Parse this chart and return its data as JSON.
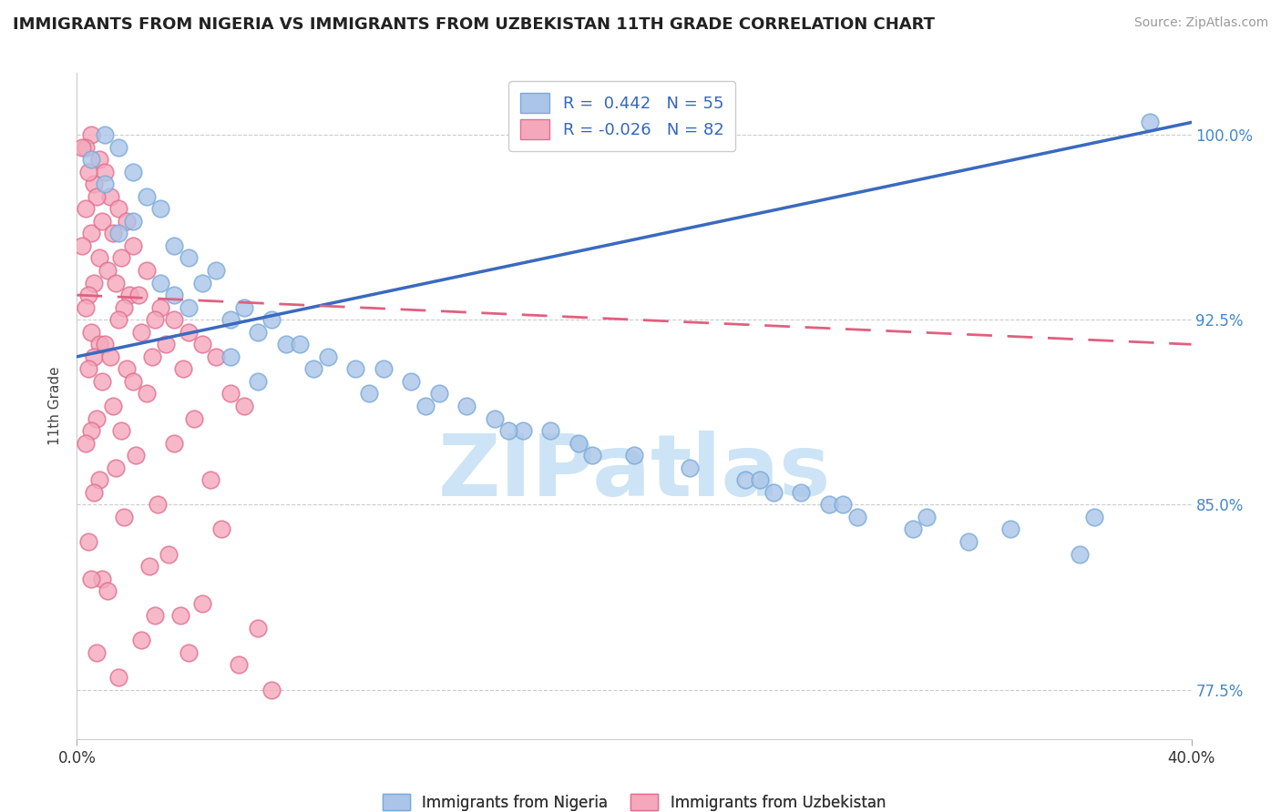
{
  "title": "IMMIGRANTS FROM NIGERIA VS IMMIGRANTS FROM UZBEKISTAN 11TH GRADE CORRELATION CHART",
  "source": "Source: ZipAtlas.com",
  "ylabel": "11th Grade",
  "y_ticks": [
    77.5,
    85.0,
    92.5,
    100.0
  ],
  "y_tick_labels": [
    "77.5%",
    "85.0%",
    "92.5%",
    "100.0%"
  ],
  "xlim": [
    0.0,
    40.0
  ],
  "ylim": [
    75.5,
    102.5
  ],
  "nigeria_color": "#aac5e8",
  "uzbekistan_color": "#f5a8bc",
  "nigeria_edge": "#7aaad8",
  "uzbekistan_edge": "#e07090",
  "trendline_nigeria_color": "#3a6abf",
  "trendline_uzbekistan_color": "#e06080",
  "legend_nigeria_label": "R =  0.442   N = 55",
  "legend_uzbekistan_label": "R = -0.026   N = 82",
  "legend_nigeria_face": "#aac5e8",
  "legend_uzbekistan_face": "#f5a8bc",
  "watermark": "ZIPatlas",
  "watermark_color": "#cce4f5",
  "trendline_nigeria_x0": 0.0,
  "trendline_nigeria_y0": 91.0,
  "trendline_nigeria_x1": 40.0,
  "trendline_nigeria_y1": 100.5,
  "trendline_uzbekistan_x0": 0.0,
  "trendline_uzbekistan_y0": 93.5,
  "trendline_uzbekistan_x1": 40.0,
  "trendline_uzbekistan_y1": 91.5,
  "nigeria_x": [
    1.0,
    1.5,
    0.5,
    2.0,
    1.0,
    2.5,
    3.0,
    2.0,
    1.5,
    3.5,
    4.0,
    5.0,
    4.5,
    3.5,
    6.0,
    5.5,
    7.0,
    6.5,
    7.5,
    8.0,
    9.0,
    10.0,
    11.0,
    12.0,
    13.0,
    14.0,
    15.0,
    16.0,
    17.0,
    18.0,
    20.0,
    22.0,
    24.0,
    25.0,
    26.0,
    27.0,
    28.0,
    30.0,
    32.0,
    36.0,
    38.5,
    3.0,
    4.0,
    5.5,
    6.5,
    8.5,
    10.5,
    12.5,
    15.5,
    18.5,
    24.5,
    27.5,
    30.5,
    33.5,
    36.5
  ],
  "nigeria_y": [
    100.0,
    99.5,
    99.0,
    98.5,
    98.0,
    97.5,
    97.0,
    96.5,
    96.0,
    95.5,
    95.0,
    94.5,
    94.0,
    93.5,
    93.0,
    92.5,
    92.5,
    92.0,
    91.5,
    91.5,
    91.0,
    90.5,
    90.5,
    90.0,
    89.5,
    89.0,
    88.5,
    88.0,
    88.0,
    87.5,
    87.0,
    86.5,
    86.0,
    85.5,
    85.5,
    85.0,
    84.5,
    84.0,
    83.5,
    83.0,
    100.5,
    94.0,
    93.0,
    91.0,
    90.0,
    90.5,
    89.5,
    89.0,
    88.0,
    87.0,
    86.0,
    85.0,
    84.5,
    84.0,
    84.5
  ],
  "uzbekistan_x": [
    0.5,
    0.3,
    0.8,
    0.2,
    1.0,
    0.6,
    0.4,
    1.2,
    1.5,
    0.7,
    0.3,
    1.8,
    0.5,
    0.9,
    1.3,
    2.0,
    1.6,
    0.2,
    0.8,
    1.1,
    2.5,
    1.4,
    0.6,
    1.9,
    2.2,
    0.4,
    3.0,
    1.7,
    0.3,
    2.8,
    3.5,
    2.3,
    4.0,
    1.5,
    0.5,
    0.8,
    3.2,
    1.0,
    4.5,
    2.7,
    0.6,
    1.2,
    5.0,
    0.4,
    1.8,
    3.8,
    2.0,
    0.9,
    5.5,
    2.5,
    1.3,
    6.0,
    0.7,
    4.2,
    1.6,
    0.5,
    0.3,
    3.5,
    2.1,
    1.4,
    0.8,
    4.8,
    0.6,
    2.9,
    1.7,
    5.2,
    0.4,
    3.3,
    2.6,
    0.9,
    1.1,
    4.5,
    3.7,
    6.5,
    2.3,
    0.7,
    5.8,
    1.5,
    7.0,
    4.0,
    2.8,
    0.5
  ],
  "uzbekistan_y": [
    100.0,
    99.5,
    99.0,
    99.5,
    98.5,
    98.0,
    98.5,
    97.5,
    97.0,
    97.5,
    97.0,
    96.5,
    96.0,
    96.5,
    96.0,
    95.5,
    95.0,
    95.5,
    95.0,
    94.5,
    94.5,
    94.0,
    94.0,
    93.5,
    93.5,
    93.5,
    93.0,
    93.0,
    93.0,
    92.5,
    92.5,
    92.0,
    92.0,
    92.5,
    92.0,
    91.5,
    91.5,
    91.5,
    91.5,
    91.0,
    91.0,
    91.0,
    91.0,
    90.5,
    90.5,
    90.5,
    90.0,
    90.0,
    89.5,
    89.5,
    89.0,
    89.0,
    88.5,
    88.5,
    88.0,
    88.0,
    87.5,
    87.5,
    87.0,
    86.5,
    86.0,
    86.0,
    85.5,
    85.0,
    84.5,
    84.0,
    83.5,
    83.0,
    82.5,
    82.0,
    81.5,
    81.0,
    80.5,
    80.0,
    79.5,
    79.0,
    78.5,
    78.0,
    77.5,
    79.0,
    80.5,
    82.0
  ]
}
